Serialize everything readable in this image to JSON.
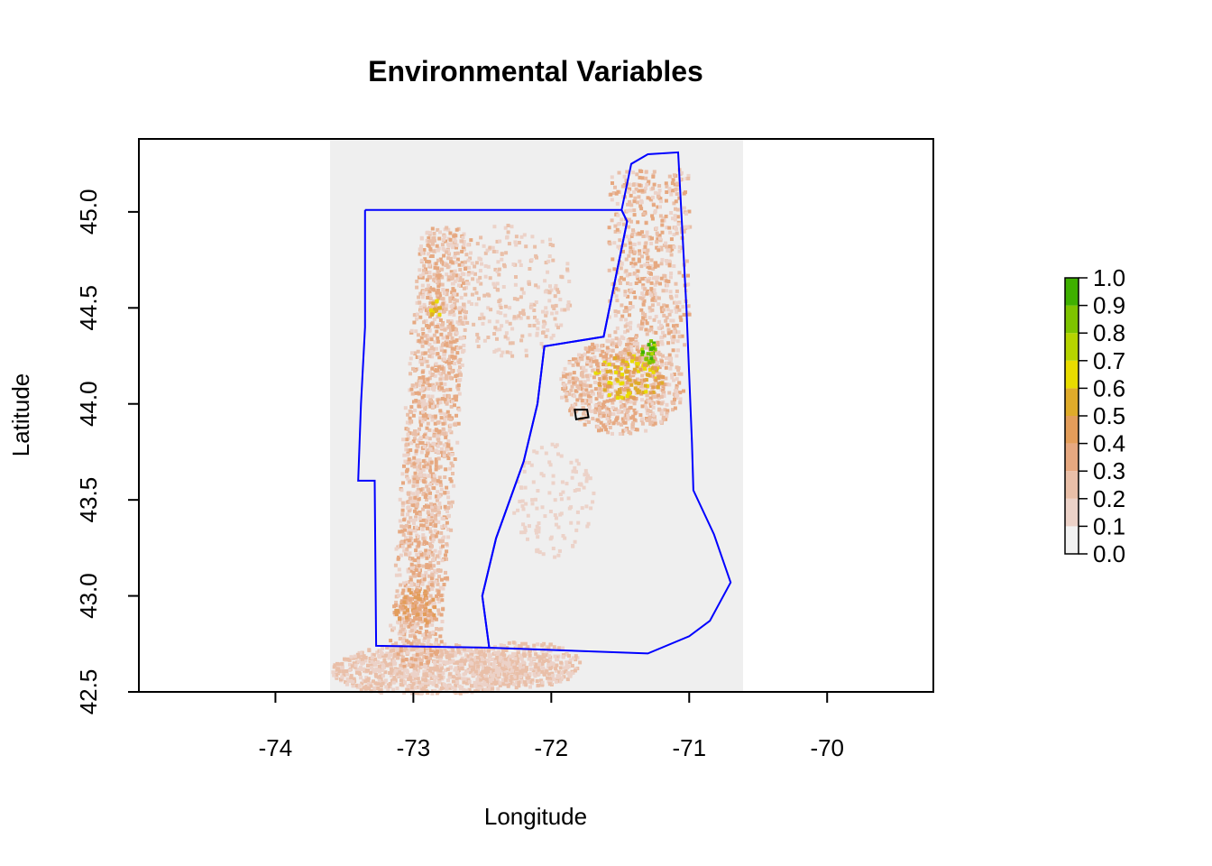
{
  "title": "Environmental Variables",
  "x_axis": {
    "label": "Longitude",
    "ticks": [
      {
        "value": -74,
        "label": "-74"
      },
      {
        "value": -73,
        "label": "-73"
      },
      {
        "value": -72,
        "label": "-72"
      },
      {
        "value": -71,
        "label": "-71"
      },
      {
        "value": -70,
        "label": "-70"
      }
    ],
    "range": [
      -74.99,
      -69.23
    ]
  },
  "y_axis": {
    "label": "Latitude",
    "ticks": [
      {
        "value": 42.5,
        "label": "42.5"
      },
      {
        "value": 43.0,
        "label": "43.0"
      },
      {
        "value": 43.5,
        "label": "43.5"
      },
      {
        "value": 44.0,
        "label": "44.0"
      },
      {
        "value": 44.5,
        "label": "44.5"
      },
      {
        "value": 45.0,
        "label": "45.0"
      }
    ],
    "range": [
      42.5,
      45.38
    ]
  },
  "raster": {
    "extent_lon": [
      -73.6,
      -70.6
    ],
    "extent_lat": [
      42.5,
      45.3
    ],
    "background_color": "#efefef"
  },
  "legend": {
    "breaks": [
      "0.0",
      "0.1",
      "0.2",
      "0.3",
      "0.4",
      "0.5",
      "0.6",
      "0.7",
      "0.8",
      "0.9",
      "1.0"
    ],
    "colors": [
      "#f2f2f2",
      "#ecd2c8",
      "#e9bfa8",
      "#e6a880",
      "#e39d5a",
      "#dfab2a",
      "#e8dc00",
      "#b6d400",
      "#7ec400",
      "#3fb000",
      "#22a000"
    ]
  },
  "colors": {
    "boundary": "#0000ff",
    "polygon": "#000000",
    "frame": "#000000"
  },
  "chart_data": {
    "type": "heatmap",
    "title": "Environmental Variables",
    "xlabel": "Longitude",
    "ylabel": "Latitude",
    "xlim": [
      -74.99,
      -69.23
    ],
    "ylim": [
      42.5,
      45.38
    ],
    "value_range": [
      0.0,
      1.0
    ],
    "raster_extent": {
      "lon": [
        -73.6,
        -70.6
      ],
      "lat": [
        42.5,
        45.3
      ]
    },
    "boundary_outline_lonlat": [
      [
        -73.35,
        45.01
      ],
      [
        -71.49,
        45.01
      ],
      [
        -71.45,
        44.95
      ],
      [
        -71.55,
        44.6
      ],
      [
        -71.62,
        44.35
      ],
      [
        -72.05,
        44.3
      ],
      [
        -72.1,
        44.0
      ],
      [
        -72.2,
        43.7
      ],
      [
        -72.4,
        43.3
      ],
      [
        -72.5,
        43.0
      ],
      [
        -72.45,
        42.73
      ],
      [
        -73.27,
        42.74
      ],
      [
        -73.28,
        43.6
      ],
      [
        -73.4,
        43.6
      ],
      [
        -73.38,
        44.0
      ],
      [
        -73.35,
        44.4
      ],
      [
        -73.35,
        44.8
      ],
      [
        -73.35,
        45.01
      ]
    ],
    "boundary_outline_nh_lonlat": [
      [
        -71.49,
        45.01
      ],
      [
        -71.42,
        45.25
      ],
      [
        -71.3,
        45.3
      ],
      [
        -71.08,
        45.31
      ],
      [
        -71.02,
        44.5
      ],
      [
        -70.98,
        43.8
      ],
      [
        -70.97,
        43.55
      ],
      [
        -70.82,
        43.32
      ],
      [
        -70.7,
        43.07
      ],
      [
        -70.85,
        42.87
      ],
      [
        -71.0,
        42.79
      ],
      [
        -71.3,
        42.7
      ],
      [
        -72.45,
        42.73
      ],
      [
        -72.5,
        43.0
      ],
      [
        -72.4,
        43.3
      ],
      [
        -72.2,
        43.7
      ],
      [
        -72.1,
        44.0
      ],
      [
        -72.05,
        44.3
      ],
      [
        -71.62,
        44.35
      ],
      [
        -71.55,
        44.6
      ],
      [
        -71.45,
        44.95
      ],
      [
        -71.49,
        45.01
      ]
    ],
    "small_polygon_lonlat": [
      [
        -71.83,
        43.97
      ],
      [
        -71.74,
        43.97
      ],
      [
        -71.73,
        43.93
      ],
      [
        -71.82,
        43.92
      ],
      [
        -71.83,
        43.97
      ]
    ]
  }
}
